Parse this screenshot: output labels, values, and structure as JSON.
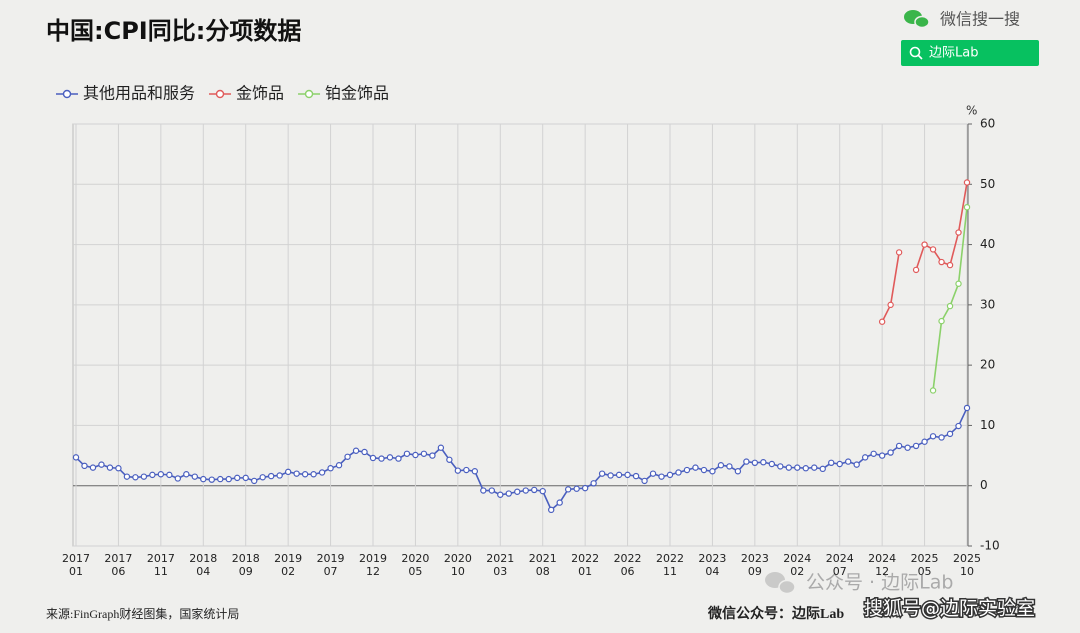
{
  "chart_data": {
    "type": "line",
    "title": "中国:CPI同比:分项数据",
    "y_unit": "%",
    "categories": [
      "2017\n01",
      null,
      null,
      null,
      null,
      "2017\n06",
      null,
      null,
      null,
      null,
      "2017\n11",
      null,
      null,
      null,
      null,
      "2018\n04",
      null,
      null,
      null,
      null,
      "2018\n09",
      null,
      null,
      null,
      null,
      "2019\n02",
      null,
      null,
      null,
      null,
      "2019\n07",
      null,
      null,
      null,
      null,
      "2019\n12",
      null,
      null,
      null,
      null,
      "2020\n05",
      null,
      null,
      null,
      null,
      "2020\n10",
      null,
      null,
      null,
      null,
      "2021\n03",
      null,
      null,
      null,
      null,
      "2021\n08",
      null,
      null,
      null,
      null,
      "2022\n01",
      null,
      null,
      null,
      null,
      "2022\n06",
      null,
      null,
      null,
      null,
      "2022\n11",
      null,
      null,
      null,
      null,
      "2023\n04",
      null,
      null,
      null,
      null,
      "2023\n09",
      null,
      null,
      null,
      null,
      "2024\n02",
      null,
      null,
      null,
      null,
      "2024\n07",
      null,
      null,
      null,
      null,
      "2024\n12",
      null,
      null,
      null,
      null,
      "2025\n05",
      null,
      null,
      null,
      null,
      "2025\n10"
    ],
    "series": [
      {
        "name": "其他用品和服务",
        "color": "#4a5fbf",
        "values": [
          4.7,
          3.3,
          3.0,
          3.5,
          3.0,
          2.9,
          1.5,
          1.4,
          1.5,
          1.8,
          1.9,
          1.8,
          1.2,
          1.9,
          1.5,
          1.1,
          1.0,
          1.1,
          1.1,
          1.3,
          1.3,
          0.8,
          1.4,
          1.6,
          1.7,
          2.3,
          2.0,
          1.9,
          1.9,
          2.2,
          2.9,
          3.4,
          4.8,
          5.8,
          5.6,
          4.6,
          4.5,
          4.7,
          4.5,
          5.3,
          5.1,
          5.3,
          5.0,
          6.3,
          4.3,
          2.5,
          2.6,
          2.4,
          -0.8,
          -0.8,
          -1.5,
          -1.3,
          -1.0,
          -0.8,
          -0.7,
          -0.9,
          -4.0,
          -2.8,
          -0.6,
          -0.5,
          -0.4,
          0.4,
          2.0,
          1.7,
          1.8,
          1.8,
          1.6,
          0.8,
          2.0,
          1.5,
          1.8,
          2.2,
          2.6,
          3.0,
          2.6,
          2.4,
          3.4,
          3.2,
          2.4,
          4.0,
          3.8,
          3.9,
          3.6,
          3.2,
          3.0,
          3.0,
          2.9,
          3.0,
          2.8,
          3.8,
          3.6,
          4.0,
          3.5,
          4.7,
          5.3,
          5.0,
          5.5,
          6.6,
          6.3,
          6.6,
          7.3,
          8.2,
          8.0,
          8.6,
          9.9,
          12.9
        ]
      },
      {
        "name": "金饰品",
        "color": "#e05a5a",
        "values": [
          null,
          null,
          null,
          null,
          null,
          null,
          null,
          null,
          null,
          null,
          null,
          null,
          null,
          null,
          null,
          null,
          null,
          null,
          null,
          null,
          null,
          null,
          null,
          null,
          null,
          null,
          null,
          null,
          null,
          null,
          null,
          null,
          null,
          null,
          null,
          null,
          null,
          null,
          null,
          null,
          null,
          null,
          null,
          null,
          null,
          null,
          null,
          null,
          null,
          null,
          null,
          null,
          null,
          null,
          null,
          null,
          null,
          null,
          null,
          null,
          null,
          null,
          null,
          null,
          null,
          null,
          null,
          null,
          null,
          null,
          null,
          null,
          null,
          null,
          null,
          null,
          null,
          null,
          null,
          null,
          null,
          null,
          null,
          null,
          null,
          null,
          null,
          null,
          null,
          null,
          null,
          null,
          null,
          null,
          null,
          27.2,
          30.0,
          38.7,
          null,
          35.8,
          40.0,
          39.2,
          37.1,
          36.6,
          42.0,
          50.3
        ]
      },
      {
        "name": "铂金饰品",
        "color": "#8bd16a",
        "values": [
          null,
          null,
          null,
          null,
          null,
          null,
          null,
          null,
          null,
          null,
          null,
          null,
          null,
          null,
          null,
          null,
          null,
          null,
          null,
          null,
          null,
          null,
          null,
          null,
          null,
          null,
          null,
          null,
          null,
          null,
          null,
          null,
          null,
          null,
          null,
          null,
          null,
          null,
          null,
          null,
          null,
          null,
          null,
          null,
          null,
          null,
          null,
          null,
          null,
          null,
          null,
          null,
          null,
          null,
          null,
          null,
          null,
          null,
          null,
          null,
          null,
          null,
          null,
          null,
          null,
          null,
          null,
          null,
          null,
          null,
          null,
          null,
          null,
          null,
          null,
          null,
          null,
          null,
          null,
          null,
          null,
          null,
          null,
          null,
          null,
          null,
          null,
          null,
          null,
          null,
          null,
          null,
          null,
          null,
          null,
          null,
          null,
          null,
          null,
          null,
          null,
          15.8,
          27.3,
          29.8,
          33.5,
          46.2
        ]
      }
    ],
    "ylim": [
      -10,
      60
    ],
    "yticks": [
      -10,
      0,
      10,
      20,
      30,
      40,
      50,
      60
    ],
    "grid": true,
    "y_axis_side": "right",
    "legend": "top-left"
  },
  "search": {
    "label": "微信搜一搜",
    "query": "边际Lab"
  },
  "source": "来源:FinGraph财经图集，国家统计局",
  "account": "微信公众号：边际Lab",
  "watermarks": [
    "公众号 · 边际Lab",
    "搜狐号@边际实验室"
  ]
}
